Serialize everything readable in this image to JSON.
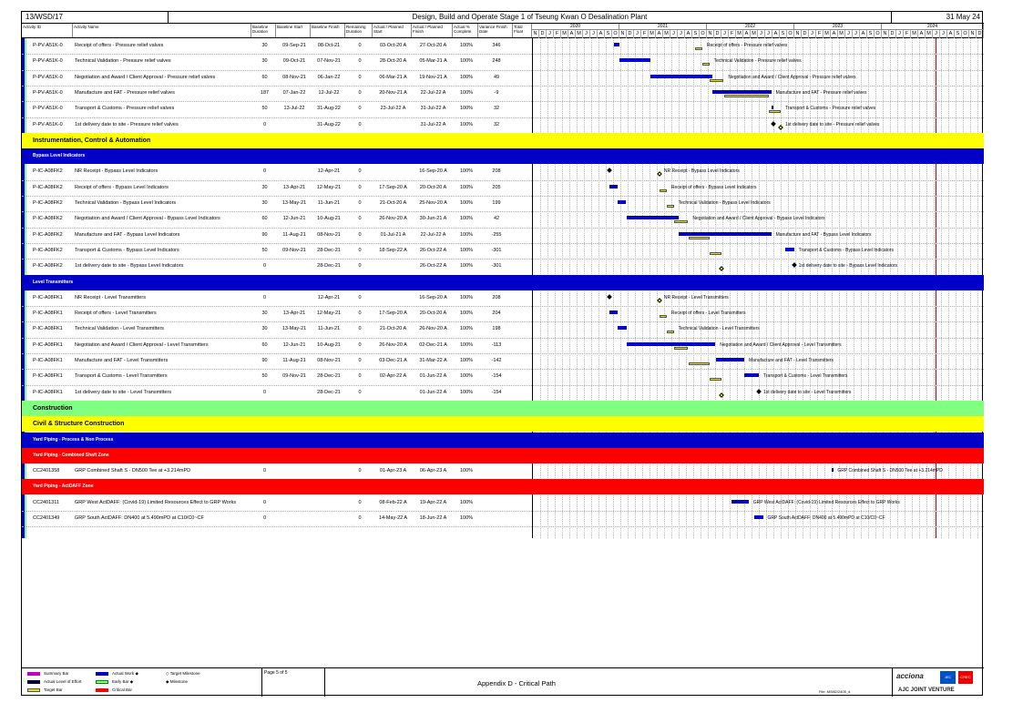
{
  "header": {
    "code": "13/WSD/17",
    "title": "Design, Build and Operate Stage 1 of Tseung Kwan O Desalination Plant",
    "date": "31 May 24"
  },
  "columns": {
    "id": "Activity ID",
    "name": "Activity Name",
    "bdur": "Baseline Duration",
    "bstart": "Baseline Start",
    "bfinish": "Baseline Finish",
    "rdur": "Remaining Duration",
    "astart": "Actual / Planned Start",
    "afinish": "Actual / Planned Finish",
    "pct": "Actual % Complete",
    "var": "Variance Finish Date",
    "float": "Total Float"
  },
  "timeline": {
    "years": [
      "2020",
      "2021",
      "2022",
      "2023",
      "2024"
    ],
    "months_2020": [
      "N",
      "D",
      "J",
      "F",
      "M",
      "A",
      "M",
      "J",
      "J",
      "A",
      "S",
      "O"
    ],
    "months_2021": [
      "N",
      "D",
      "J",
      "F",
      "M",
      "A",
      "M",
      "J",
      "J",
      "A",
      "S",
      "O"
    ],
    "months_2022": [
      "N",
      "D",
      "J",
      "F",
      "M",
      "A",
      "M",
      "J",
      "J",
      "A",
      "S",
      "O"
    ],
    "months_2023": [
      "N",
      "D",
      "J",
      "F",
      "M",
      "A",
      "M",
      "J",
      "J",
      "A",
      "S",
      "O"
    ],
    "months_2024": [
      "N",
      "D",
      "J",
      "F",
      "M",
      "A",
      "M",
      "J",
      "J",
      "A",
      "S",
      "O",
      "N",
      "D"
    ]
  },
  "rows": [
    {
      "id": "P-PV-A51K-0",
      "name": "Receipt of offers - Pressure relief valves",
      "bdur": "30",
      "bstart": "09-Sep-21",
      "bfinish": "08-Oct-21",
      "rdur": "0",
      "astart": "03-Oct-20 A",
      "afinish": "27-Oct-20 A",
      "pct": "100%",
      "var": "346",
      "bar_label": "Receipt of offers - Pressure relief valves"
    },
    {
      "id": "P-PV-A51K-0",
      "name": "Technical Validation - Pressure relief valves",
      "bdur": "30",
      "bstart": "09-Oct-21",
      "bfinish": "07-Nov-21",
      "rdur": "0",
      "astart": "28-Oct-20 A",
      "afinish": "05-Mar-21 A",
      "pct": "100%",
      "var": "248",
      "bar_label": "Technical Validation - Pressure relief valves"
    },
    {
      "id": "P-PV-A51K-0",
      "name": "Negotiation and Award / Client Approval - Pressure relief valves",
      "bdur": "60",
      "bstart": "08-Nov-21",
      "bfinish": "06-Jan-22",
      "rdur": "0",
      "astart": "06-Mar-21 A",
      "afinish": "19-Nov-21 A",
      "pct": "100%",
      "var": "49",
      "bar_label": "Negotiation and Award / Client Approval - Pressure relief valves"
    },
    {
      "id": "P-PV-A51K-0",
      "name": "Manufacture and FAT - Pressure relief valves",
      "bdur": "187",
      "bstart": "07-Jan-22",
      "bfinish": "12-Jul-22",
      "rdur": "0",
      "astart": "20-Nov-21 A",
      "afinish": "22-Jul-22 A",
      "pct": "100%",
      "var": "-9",
      "bar_label": "Manufacture and FAT - Pressure relief valves"
    },
    {
      "id": "P-PV-A51K-0",
      "name": "Transport & Customs - Pressure relief valves",
      "bdur": "50",
      "bstart": "13-Jul-22",
      "bfinish": "31-Aug-22",
      "rdur": "0",
      "astart": "23-Jul-22 A",
      "afinish": "31-Jul-22 A",
      "pct": "100%",
      "var": "32",
      "bar_label": "Transport & Customs - Pressure relief valves"
    },
    {
      "id": "P-PV-A51K-0",
      "name": "1st delivery date to site - Pressure relief valves",
      "bdur": "0",
      "bstart": "",
      "bfinish": "31-Aug-22",
      "rdur": "0",
      "astart": "",
      "afinish": "31-Jul-22 A",
      "pct": "100%",
      "var": "32",
      "bar_label": "1st delivery date to site - Pressure relief valves"
    },
    {
      "band": "yellow",
      "label": "Instrumentation, Control & Automation"
    },
    {
      "band": "blue",
      "label": "Bypass Level Indicators"
    },
    {
      "id": "P-IC-A08FK2",
      "name": "NR Receipt - Bypass Level Indicators",
      "bdur": "0",
      "bstart": "",
      "bfinish": "12-Apr-21",
      "rdur": "0",
      "astart": "",
      "afinish": "16-Sep-20 A",
      "pct": "100%",
      "var": "208",
      "bar_label": "NR Receipt - Bypass Level Indicators"
    },
    {
      "id": "P-IC-A08FK2",
      "name": "Receipt of offers - Bypass Level Indicators",
      "bdur": "30",
      "bstart": "13-Apr-21",
      "bfinish": "12-May-21",
      "rdur": "0",
      "astart": "17-Sep-20 A",
      "afinish": "20-Oct-20 A",
      "pct": "100%",
      "var": "205",
      "bar_label": "Receipt of offers - Bypass Level Indicators"
    },
    {
      "id": "P-IC-A08FK2",
      "name": "Technical Validation - Bypass Level Indicators",
      "bdur": "30",
      "bstart": "13-May-21",
      "bfinish": "11-Jun-21",
      "rdur": "0",
      "astart": "21-Oct-20 A",
      "afinish": "25-Nov-20 A",
      "pct": "100%",
      "var": "199",
      "bar_label": "Technical Validation - Bypass Level Indicators"
    },
    {
      "id": "P-IC-A08FK2",
      "name": "Negotiation and Award / Client Approval - Bypass Level Indicators",
      "bdur": "60",
      "bstart": "12-Jun-21",
      "bfinish": "10-Aug-21",
      "rdur": "0",
      "astart": "26-Nov-20 A",
      "afinish": "30-Jun-21 A",
      "pct": "100%",
      "var": "42",
      "bar_label": "Negotiation and Award / Client Approval - Bypass Level Indicators"
    },
    {
      "id": "P-IC-A08FK2",
      "name": "Manufacture and FAT - Bypass Level Indicators",
      "bdur": "90",
      "bstart": "11-Aug-21",
      "bfinish": "08-Nov-21",
      "rdur": "0",
      "astart": "01-Jul-21 A",
      "afinish": "22-Jul-22 A",
      "pct": "100%",
      "var": "-255",
      "bar_label": "Manufacture and FAT - Bypass Level Indicators"
    },
    {
      "id": "P-IC-A08FK2",
      "name": "Transport & Customs - Bypass Level Indicators",
      "bdur": "50",
      "bstart": "09-Nov-21",
      "bfinish": "28-Dec-21",
      "rdur": "0",
      "astart": "18-Sep-22 A",
      "afinish": "26-Oct-22 A",
      "pct": "100%",
      "var": "-301",
      "bar_label": "Transport & Customs - Bypass Level Indicators"
    },
    {
      "id": "P-IC-A08FK2",
      "name": "1st delivery date to site - Bypass Level Indicators",
      "bdur": "0",
      "bstart": "",
      "bfinish": "28-Dec-21",
      "rdur": "0",
      "astart": "",
      "afinish": "26-Oct-22 A",
      "pct": "100%",
      "var": "-301",
      "bar_label": "1st delivery date to site - Bypass Level Indicators"
    },
    {
      "band": "blue",
      "label": "Level Transmitters"
    },
    {
      "id": "P-IC-A08FK1",
      "name": "NR Receipt - Level Transmitters",
      "bdur": "0",
      "bstart": "",
      "bfinish": "12-Apr-21",
      "rdur": "0",
      "astart": "",
      "afinish": "16-Sep-20 A",
      "pct": "100%",
      "var": "208",
      "bar_label": "NR Receipt - Level Transmitters"
    },
    {
      "id": "P-IC-A08FK1",
      "name": "Receipt of offers - Level Transmitters",
      "bdur": "30",
      "bstart": "13-Apr-21",
      "bfinish": "12-May-21",
      "rdur": "0",
      "astart": "17-Sep-20 A",
      "afinish": "20-Oct-20 A",
      "pct": "100%",
      "var": "204",
      "bar_label": "Receipt of offers - Level Transmitters"
    },
    {
      "id": "P-IC-A08FK1",
      "name": "Technical Validation - Level Transmitters",
      "bdur": "30",
      "bstart": "13-May-21",
      "bfinish": "11-Jun-21",
      "rdur": "0",
      "astart": "21-Oct-20 A",
      "afinish": "26-Nov-20 A",
      "pct": "100%",
      "var": "198",
      "bar_label": "Technical Validation - Level Transmitters"
    },
    {
      "id": "P-IC-A08FK1",
      "name": "Negotiation and Award / Client Approval - Level Transmitters",
      "bdur": "60",
      "bstart": "12-Jun-21",
      "bfinish": "10-Aug-21",
      "rdur": "0",
      "astart": "26-Nov-20 A",
      "afinish": "02-Dec-21 A",
      "pct": "100%",
      "var": "-113",
      "bar_label": "Negotiation and Award / Client Approval - Level Transmitters"
    },
    {
      "id": "P-IC-A08FK1",
      "name": "Manufacture and FAT - Level Transmitters",
      "bdur": "90",
      "bstart": "11-Aug-21",
      "bfinish": "08-Nov-21",
      "rdur": "0",
      "astart": "03-Dec-21 A",
      "afinish": "31-Mar-22 A",
      "pct": "100%",
      "var": "-142",
      "bar_label": "Manufacture and FAT - Level Transmitters"
    },
    {
      "id": "P-IC-A08FK1",
      "name": "Transport & Customs - Level Transmitters",
      "bdur": "50",
      "bstart": "09-Nov-21",
      "bfinish": "28-Dec-21",
      "rdur": "0",
      "astart": "02-Apr-22 A",
      "afinish": "01-Jun-22 A",
      "pct": "100%",
      "var": "-154",
      "bar_label": "Transport & Customs - Level Transmitters"
    },
    {
      "id": "P-IC-A08FK1",
      "name": "1st delivery date to site - Level Transmitters",
      "bdur": "0",
      "bstart": "",
      "bfinish": "28-Dec-21",
      "rdur": "0",
      "astart": "",
      "afinish": "01-Jun-22 A",
      "pct": "100%",
      "var": "-154",
      "bar_label": "1st delivery date to site - Level Transmitters"
    },
    {
      "band": "green",
      "label": "Construction"
    },
    {
      "band": "yellow",
      "label": "Civil & Structure Construction"
    },
    {
      "band": "blue",
      "label": "Yard Piping - Process & Non Process"
    },
    {
      "band": "red",
      "label": "Yard Piping - Combined Shaft Zone"
    },
    {
      "id": "CC2401358",
      "name": "GRP Combined Shaft S - DN500 Tee at +3.214mPD",
      "bdur": "0",
      "bstart": "",
      "bfinish": "",
      "rdur": "0",
      "astart": "01-Apr-23 A",
      "afinish": "06-Apr-23 A",
      "pct": "100%",
      "var": "",
      "bar_label": "GRP Combined Shaft S - DN500 Tee at +3.214mPD"
    },
    {
      "band": "red",
      "label": "Yard Piping - ActDAFF Zone"
    },
    {
      "id": "CC2401311",
      "name": "GRP West ActDAFF: (Covid-19) Limited Resources Effect to GRP Works",
      "bdur": "0",
      "bstart": "",
      "bfinish": "",
      "rdur": "0",
      "astart": "08-Feb-22 A",
      "afinish": "19-Apr-22 A",
      "pct": "100%",
      "var": "",
      "bar_label": "GRP West ActDAFF: (Covid-19) Limited Resources Effect to GRP Works"
    },
    {
      "id": "CC2401349",
      "name": "GRP South ActDAFF: DN400 at 5.490mPD at C10/C0~CF",
      "bdur": "0",
      "bstart": "",
      "bfinish": "",
      "rdur": "0",
      "astart": "14-May-22 A",
      "afinish": "18-Jun-22 A",
      "pct": "100%",
      "var": "",
      "bar_label": "GRP South ActDAFF: DN400 at 5.490mPD at C10/C0~CF"
    }
  ],
  "footer": {
    "legend": {
      "summary": "Summary Bar",
      "actual_level": "Actual Level of Effort",
      "target": "Target Bar",
      "actual_work": "Actual Work",
      "early": "Early Bar",
      "critical": "Critical Bar",
      "target_ms": "Target Milestone",
      "milestone": "Milestone"
    },
    "page": "Page 5 of 5",
    "appendix": "Appendix D - Critical Path",
    "file": "File: M/082/2405_d",
    "logo_brand": "acciona",
    "logo_jec": "JEC",
    "logo_crec": "CREC",
    "logo_jv": "AJC JOINT VENTURE"
  },
  "colors": {
    "actual": "#0000c8",
    "target": "#e8e000",
    "critical": "#ff0000",
    "summary": "#c000c0",
    "early": "#80ff80",
    "today_line": "#c00000"
  }
}
